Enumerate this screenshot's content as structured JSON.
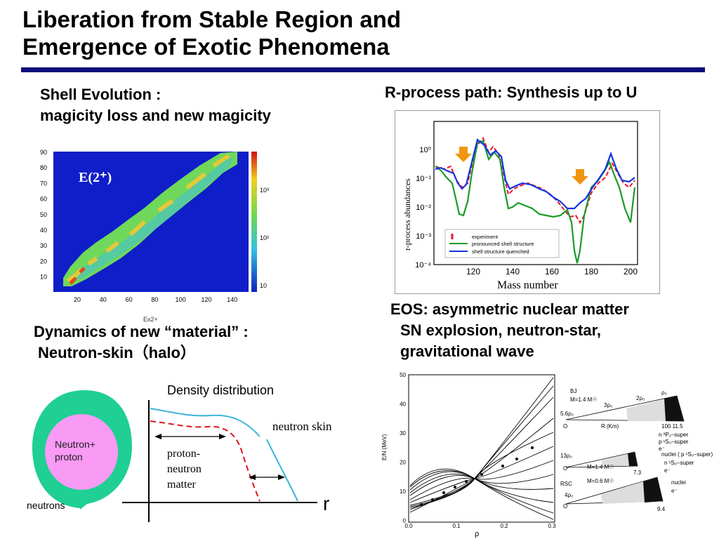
{
  "slide": {
    "title_line1": "Liberation from Stable Region and",
    "title_line2": "Emergence of Exotic Phenomena"
  },
  "shell": {
    "heading_line1": "Shell Evolution :",
    "heading_line2": "magicity loss and new magicity",
    "plot_label": "E(2⁺)",
    "x_ticks": [
      "20",
      "40",
      "60",
      "80",
      "100",
      "120",
      "140"
    ],
    "y_ticks": [
      "90",
      "80",
      "70",
      "60",
      "50",
      "40",
      "30",
      "20",
      "10"
    ],
    "x_axis_label": "Ex2+",
    "colorbar_ticks": [
      "10³",
      "10²",
      "10"
    ]
  },
  "rprocess": {
    "heading": "R-process path: Synthesis up to U",
    "y_label": "r-process abundances",
    "y_ticks": [
      "10⁰",
      "10⁻¹",
      "10⁻²",
      "10⁻³",
      "10⁻⁴"
    ],
    "x_ticks": [
      "120",
      "140",
      "160",
      "180",
      "200"
    ],
    "x_label": "Mass number",
    "legend": [
      "experiment",
      "pronounced shell structure",
      "shell structure quenched"
    ],
    "colors": {
      "experiment": "#e8142a",
      "pronounced": "#1b9a2a",
      "quenched": "#1535e0",
      "arrow": "#f0950f"
    }
  },
  "eos": {
    "heading_line1": "EOS: asymmetric nuclear matter",
    "heading_line2": "SN explosion, neutron-star,",
    "heading_line3": "gravitational wave",
    "y_label": "E/N (MeV)",
    "y_ticks": [
      "50",
      "40",
      "30",
      "20",
      "10",
      "0"
    ],
    "x_ticks": [
      "0.0",
      "0.1",
      "0.2",
      "0.3"
    ],
    "x_label": "ρ",
    "star_labels": {
      "bj": "BJ",
      "m1": "M=1.4 M☉",
      "d56": "5.6ρ₀",
      "d3": "3ρ₀",
      "d2": "2ρ₀",
      "rho0": "ρ₀",
      "o1": "O",
      "rkm": "R  (Km)",
      "r100": "100  11.5",
      "p_list": "n ³P₂–super\np ¹S₀–super\ne⁻",
      "d13": "13ρ₀",
      "o2": "O",
      "m2": "M=1.4 M☉",
      "r73": "7.3",
      "nuclei1": "nuclei ( p ¹S₀–super)",
      "n1s0": "n  ¹S₀–super",
      "e1": "e⁻",
      "rsc": "RSC",
      "m3": "M=0.6 M☉",
      "d4": "4ρ₀",
      "o3": "O",
      "r94": "9.4",
      "nuclei2": "nuclei",
      "e2": "e⁻"
    }
  },
  "dynamics": {
    "heading_line1": "Dynamics of new “material” :",
    "heading_line2": "Neutron-skin（halo）",
    "inner_label": "Neutron+\nproton",
    "outer_label": "neutrons",
    "density_title": "Density distribution",
    "skin_label": "neutron skin",
    "matter_label": "proton-\nneutron\nmatter",
    "r_label": "r",
    "colors": {
      "halo": "#1fcf93",
      "core": "#f99af5",
      "skin_curve": "#3bb4d8",
      "matter_curve": "#e0141e"
    }
  }
}
